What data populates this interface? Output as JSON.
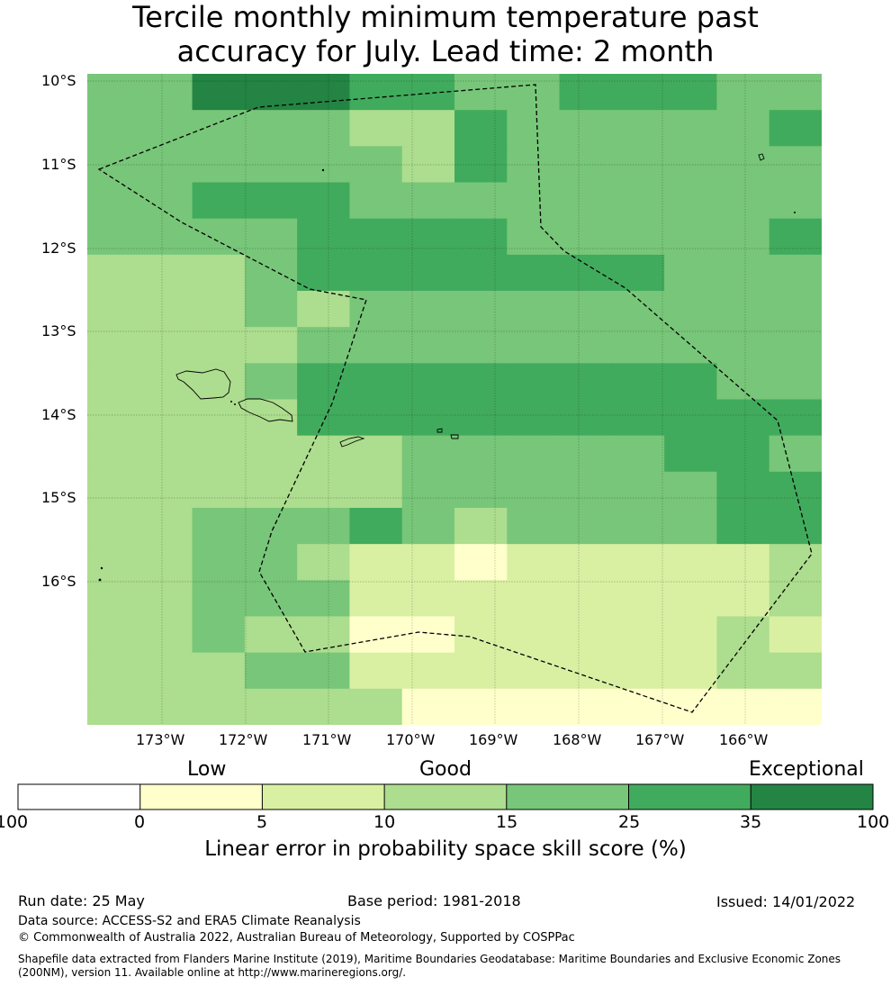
{
  "title": {
    "line1": "Tercile monthly minimum temperature past",
    "line2": "accuracy for July. Lead time: 2 month"
  },
  "map": {
    "lat_labels": [
      "10°S",
      "11°S",
      "12°S",
      "13°S",
      "14°S",
      "15°S",
      "16°S"
    ],
    "lon_labels": [
      "173°W",
      "172°W",
      "171°W",
      "170°W",
      "169°W",
      "168°W",
      "167°W",
      "166°W"
    ]
  },
  "colors": {
    "c0": "#ffffff",
    "c1": "#ffffcc",
    "c2": "#d9f0a3",
    "c3": "#addd8e",
    "c4": "#78c679",
    "c5": "#41ab5d",
    "c6": "#238443"
  },
  "grid_rows": [
    "44666554455544",
    "44444335444445",
    "44444435444444",
    "44555444444444",
    "44445555444445",
    "33345555555444",
    "33343444444444",
    "33334444444444",
    "33345555555544",
    "33335555555555",
    "33333344444554",
    "33333344444455",
    "33444543444455",
    "33443221222223",
    "33444222222223",
    "33433112222232",
    "33344222222233",
    "33333311111111"
  ],
  "colorbar": {
    "categories": [
      "Low",
      "Good",
      "Exceptional"
    ],
    "ticks": [
      "-100",
      "0",
      "5",
      "10",
      "15",
      "25",
      "35",
      "100"
    ],
    "label": "Linear error in probability space skill score (%)"
  },
  "footer": {
    "run_date": "Run date: 25 May",
    "base_period": "Base period: 1981-2018",
    "issued": "Issued: 14/01/2022",
    "data_source": "Data source: ACCESS-S2 and ERA5 Climate Reanalysis",
    "copyright": "© Commonwealth of Australia 2022, Australian Bureau of Meteorology, Supported by COSPPac",
    "shapefile_line1": "Shapefile data extracted from Flanders Marine Institute (2019), Maritime Boundaries Geodatabase: Maritime Boundaries and Exclusive Economic Zones",
    "shapefile_line2": "(200NM), version 11. Available online at http://www.marineregions.org/."
  }
}
